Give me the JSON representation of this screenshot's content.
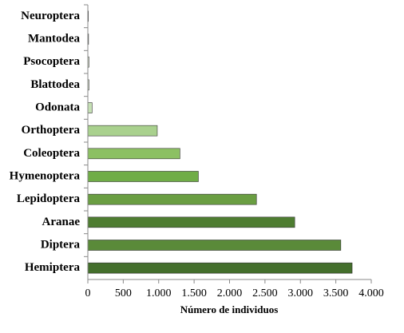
{
  "chart_data": {
    "type": "barh",
    "x_label": "Número de individuos",
    "categories": [
      "Neuroptera",
      "Mantodea",
      "Psocoptera",
      "Blattodea",
      "Odonata",
      "Orthoptera",
      "Coleoptera",
      "Hymenoptera",
      "Lepidoptera",
      "Aranae",
      "Diptera",
      "Hemiptera"
    ],
    "values": [
      8,
      10,
      15,
      15,
      60,
      980,
      1300,
      1560,
      2380,
      2920,
      3570,
      3730
    ],
    "colors": [
      "#dbead0",
      "#dbead0",
      "#dbead0",
      "#dbead0",
      "#c5e0b4",
      "#a9d18e",
      "#8cc063",
      "#70ad47",
      "#6a9e42",
      "#4e7d31",
      "#5a8a39",
      "#446f2c"
    ],
    "xlim": [
      0,
      4000
    ],
    "xticks": [
      0,
      500,
      {
        "value": 1000,
        "label": "1.000"
      },
      {
        "value": 1500,
        "label": "1.500"
      },
      {
        "value": 2000,
        "label": "2.000"
      },
      {
        "value": 2500,
        "label": "2.500"
      },
      {
        "value": 3000,
        "label": "3.000"
      },
      {
        "value": 3500,
        "label": "3.500"
      },
      {
        "value": 4000,
        "label": "4.000"
      }
    ],
    "grid": false
  }
}
